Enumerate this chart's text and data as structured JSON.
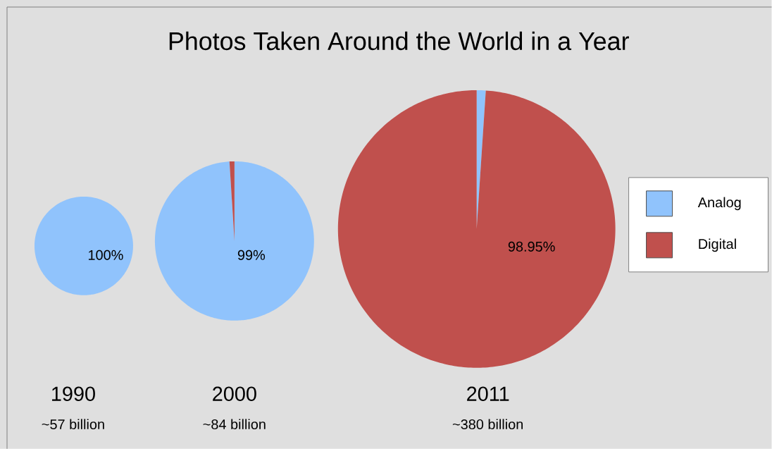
{
  "chart_data": [
    {
      "type": "pie",
      "title": "1990",
      "subtitle": "~57 billion",
      "annotations": [
        "Photos Taken Around the World in a Year"
      ],
      "categories": [
        null,
        null
      ],
      "values": [
        100,
        0
      ],
      "colors": [
        "#90c3fc",
        "#c0504d"
      ],
      "value_labels": [
        "100%",
        null
      ]
    },
    {
      "type": "pie",
      "title": "2000",
      "subtitle": "~84 billion",
      "categories": [
        null,
        null
      ],
      "values": [
        99,
        1
      ],
      "colors": [
        "#90c3fc",
        "#c0504d"
      ],
      "value_labels": [
        "99%",
        null
      ]
    },
    {
      "type": "pie",
      "title": "2011",
      "subtitle": "~380 billion",
      "categories": [
        "Analog",
        "Digital"
      ],
      "values": [
        1.05,
        98.95
      ],
      "colors": [
        "#90c3fc",
        "#c0504d"
      ],
      "value_labels": [
        null,
        "98.95%"
      ],
      "legend": "right"
    }
  ]
}
